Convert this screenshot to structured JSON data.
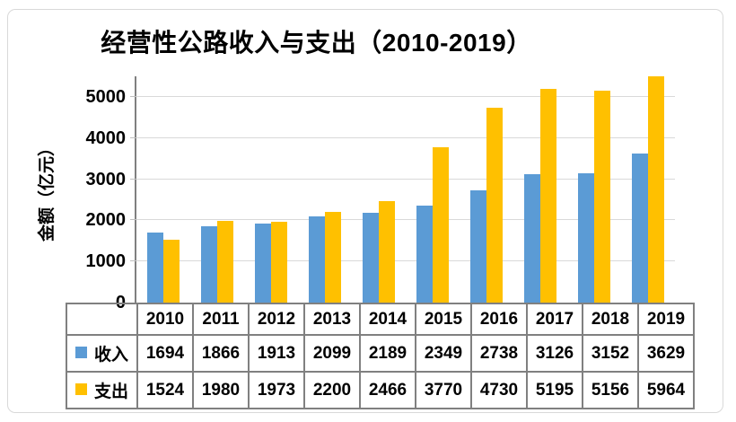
{
  "title": "经营性公路收入与支出（2010-2019）",
  "y_axis": {
    "label": "金额（亿元）",
    "tick_labels": [
      "0",
      "1000",
      "2000",
      "3000",
      "4000",
      "5000"
    ]
  },
  "table": {
    "row_labels": [
      "收入",
      "支出"
    ]
  },
  "colors": {
    "income_series": "#5B9BD5",
    "expense_series": "#FFC000",
    "gridline": "#D9D9D9",
    "table_border": "#808080"
  },
  "chart_data": {
    "type": "bar",
    "title": "经营性公路收入与支出（2010-2019）",
    "categories": [
      "2010",
      "2011",
      "2012",
      "2013",
      "2014",
      "2015",
      "2016",
      "2017",
      "2018",
      "2019"
    ],
    "series": [
      {
        "name": "收入",
        "color": "#5B9BD5",
        "values": [
          1694,
          1866,
          1913,
          2099,
          2189,
          2349,
          2738,
          3126,
          3152,
          3629
        ]
      },
      {
        "name": "支出",
        "color": "#FFC000",
        "values": [
          1524,
          1980,
          1973,
          2200,
          2466,
          3770,
          4730,
          5195,
          5156,
          5964
        ]
      }
    ],
    "xlabel": "",
    "ylabel": "金额（亿元）",
    "ylim": [
      0,
      5500
    ],
    "yticks": [
      0,
      1000,
      2000,
      3000,
      4000,
      5000
    ],
    "grid": true,
    "legend_position": "data-table-left",
    "data_table_shown": true
  }
}
